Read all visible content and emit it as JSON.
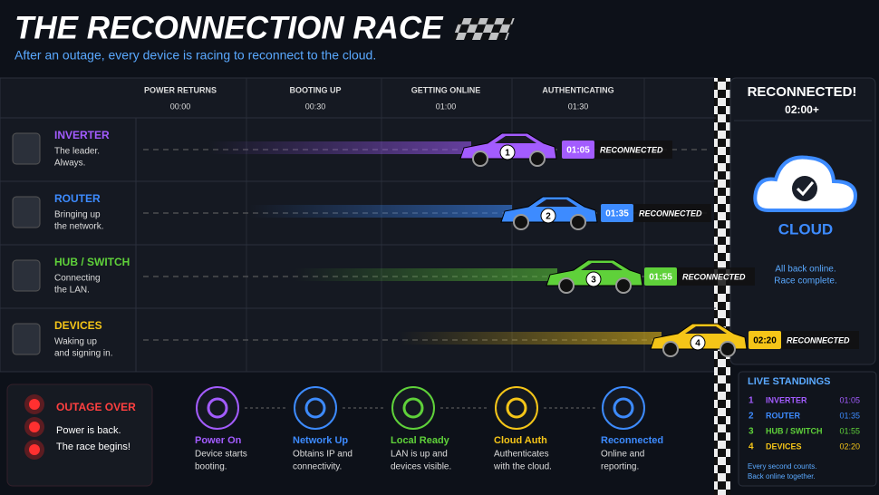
{
  "header": {
    "title": "THE RECONNECTION RACE",
    "subtitle": "After an outage, every device is racing to reconnect to the cloud."
  },
  "timeline": [
    {
      "label": "POWER RETURNS",
      "time": "00:00"
    },
    {
      "label": "BOOTING UP",
      "time": "00:30"
    },
    {
      "label": "GETTING ONLINE",
      "time": "01:00"
    },
    {
      "label": "AUTHENTICATING",
      "time": "01:30"
    }
  ],
  "lanes": [
    {
      "name": "INVERTER",
      "desc": [
        "The leader.",
        "Always."
      ],
      "number": "1",
      "time": "01:05",
      "status": "RECONNECTED",
      "color": "#a35cff"
    },
    {
      "name": "ROUTER",
      "desc": [
        "Bringing up",
        "the network."
      ],
      "number": "2",
      "time": "01:35",
      "status": "RECONNECTED",
      "color": "#3d8bff"
    },
    {
      "name": "HUB / SWITCH",
      "desc": [
        "Connecting",
        "the LAN."
      ],
      "number": "3",
      "time": "01:55",
      "status": "RECONNECTED",
      "color": "#5fd13a"
    },
    {
      "name": "DEVICES",
      "desc": [
        "Waking up",
        "and signing in."
      ],
      "number": "4",
      "time": "02:20",
      "status": "RECONNECTED",
      "color": "#f5c518"
    }
  ],
  "finish": {
    "title": "RECONNECTED!",
    "time": "02:00+",
    "cloud": "CLOUD",
    "note": [
      "All back online.",
      "Race complete."
    ]
  },
  "outage": {
    "title": "OUTAGE OVER",
    "lines": [
      "Power is back.",
      "The race begins!"
    ]
  },
  "steps": [
    {
      "title": "Power On",
      "desc": [
        "Device starts",
        "booting."
      ],
      "color": "#a35cff"
    },
    {
      "title": "Network Up",
      "desc": [
        "Obtains IP and",
        "connectivity."
      ],
      "color": "#3d8bff"
    },
    {
      "title": "Local Ready",
      "desc": [
        "LAN is up and",
        "devices visible."
      ],
      "color": "#5fd13a"
    },
    {
      "title": "Cloud Auth",
      "desc": [
        "Authenticates",
        "with the cloud."
      ],
      "color": "#f5c518"
    },
    {
      "title": "Reconnected",
      "desc": [
        "Online and",
        "reporting."
      ],
      "color": "#3d8bff"
    }
  ],
  "standings": {
    "title": "LIVE STANDINGS",
    "rows": [
      {
        "rank": "1",
        "name": "INVERTER",
        "time": "01:05"
      },
      {
        "rank": "2",
        "name": "ROUTER",
        "time": "01:35"
      },
      {
        "rank": "3",
        "name": "HUB / SWITCH",
        "time": "01:55"
      },
      {
        "rank": "4",
        "name": "DEVICES",
        "time": "02:20"
      }
    ],
    "footer": [
      "Every second counts.",
      "Back online together."
    ]
  }
}
